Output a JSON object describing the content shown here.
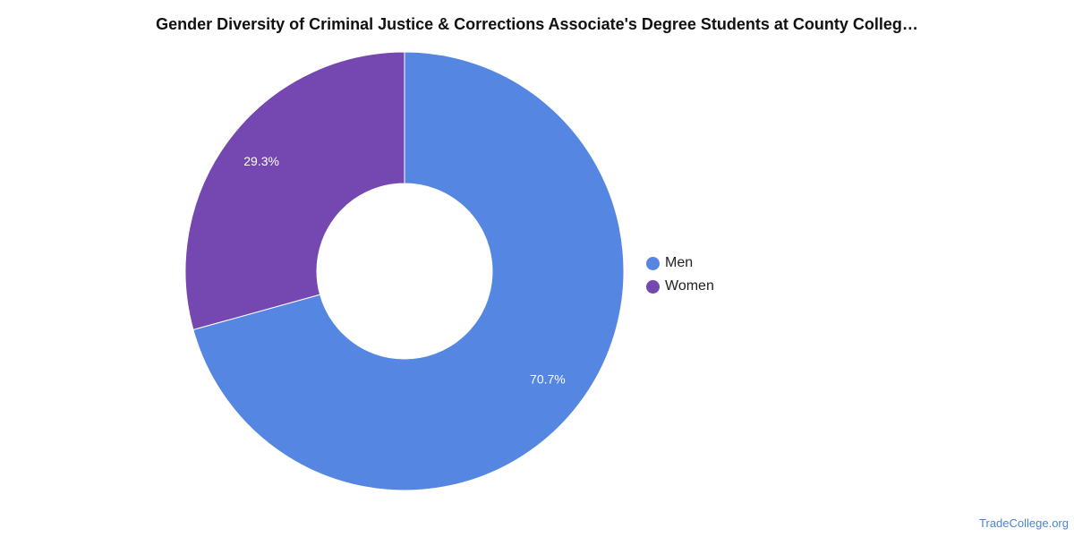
{
  "chart_data": {
    "type": "pie",
    "variant": "donut",
    "title": "Gender Diversity of Criminal Justice & Corrections Associate's Degree Students at County Colleg…",
    "categories": [
      "Men",
      "Women"
    ],
    "values": [
      70.7,
      29.3
    ],
    "value_labels": [
      "70.7%",
      "29.3%"
    ],
    "colors": [
      "#5486e2",
      "#7448b0"
    ],
    "legend_position": "right"
  },
  "watermark": "TradeCollege.org"
}
